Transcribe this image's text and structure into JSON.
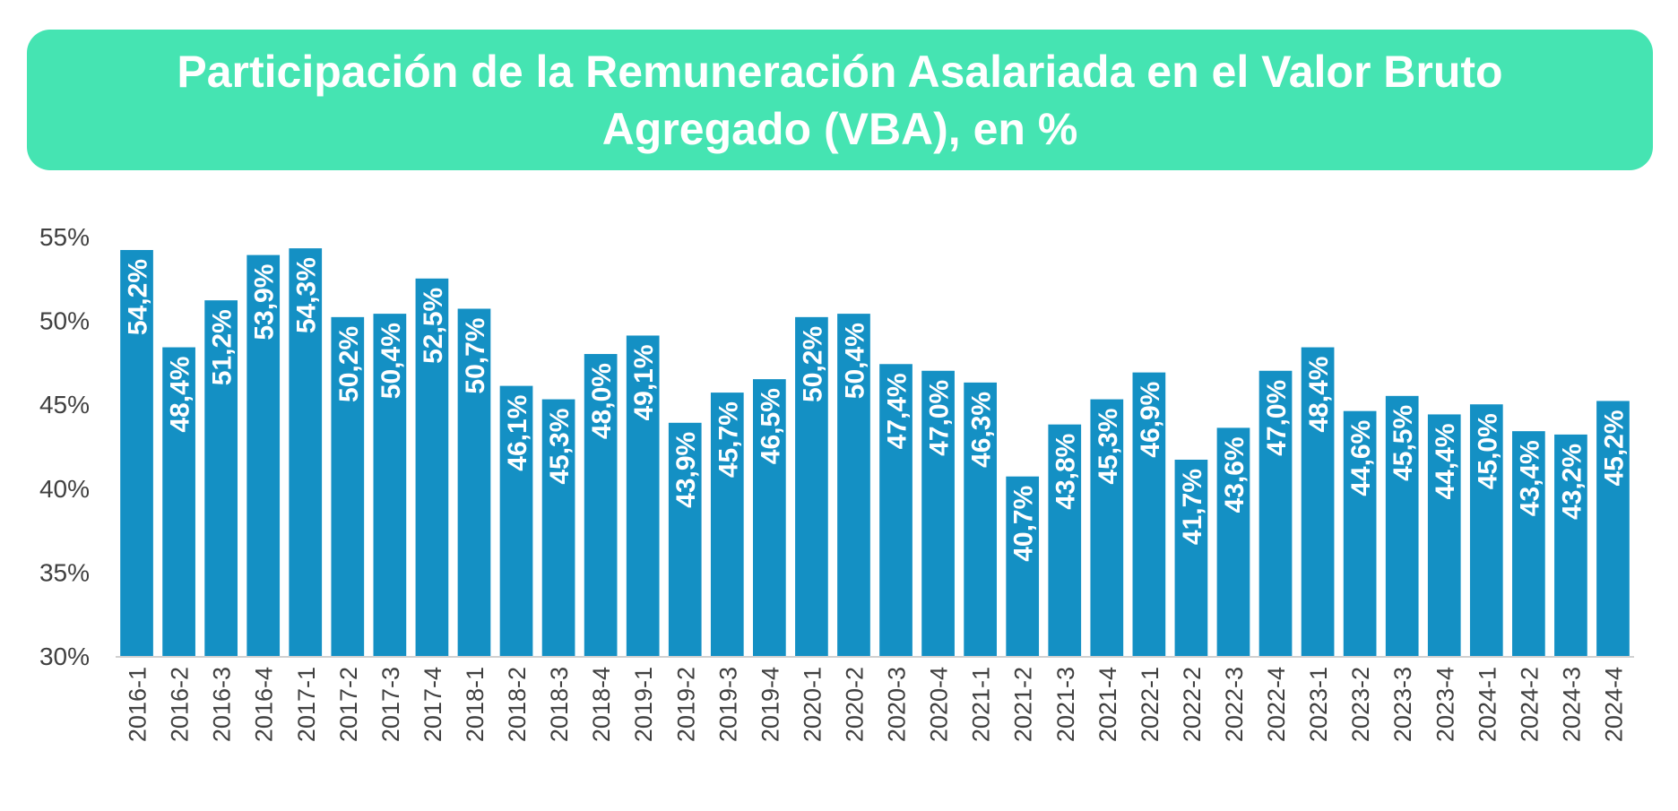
{
  "chart_data": {
    "type": "bar",
    "title_lines": [
      "Participación de la Remuneración Asalariada en el Valor Bruto",
      "Agregado (VBA), en %"
    ],
    "xlabel": "",
    "ylabel": "",
    "ylim": [
      30,
      55
    ],
    "yticks": [
      "30%",
      "35%",
      "40%",
      "45%",
      "50%",
      "55%"
    ],
    "ytick_values": [
      30,
      35,
      40,
      45,
      50,
      55
    ],
    "categories": [
      "2016-1",
      "2016-2",
      "2016-3",
      "2016-4",
      "2017-1",
      "2017-2",
      "2017-3",
      "2017-4",
      "2018-1",
      "2018-2",
      "2018-3",
      "2018-4",
      "2019-1",
      "2019-2",
      "2019-3",
      "2019-4",
      "2020-1",
      "2020-2",
      "2020-3",
      "2020-4",
      "2021-1",
      "2021-2",
      "2021-3",
      "2021-4",
      "2022-1",
      "2022-2",
      "2022-3",
      "2022-4",
      "2023-1",
      "2023-2",
      "2023-3",
      "2023-4",
      "2024-1",
      "2024-2",
      "2024-3",
      "2024-4"
    ],
    "values": [
      54.2,
      48.4,
      51.2,
      53.9,
      54.3,
      50.2,
      50.4,
      52.5,
      50.7,
      46.1,
      45.3,
      48.0,
      49.1,
      43.9,
      45.7,
      46.5,
      50.2,
      50.4,
      47.4,
      47.0,
      46.3,
      40.7,
      43.8,
      45.3,
      46.9,
      41.7,
      43.6,
      47.0,
      48.4,
      44.6,
      45.5,
      44.4,
      45.0,
      43.4,
      43.2,
      45.2
    ],
    "data_labels": [
      "54,2%",
      "48,4%",
      "51,2%",
      "53,9%",
      "54,3%",
      "50,2%",
      "50,4%",
      "52,5%",
      "50,7%",
      "46,1%",
      "45,3%",
      "48,0%",
      "49,1%",
      "43,9%",
      "45,7%",
      "46,5%",
      "50,2%",
      "50,4%",
      "47,4%",
      "47,0%",
      "46,3%",
      "40,7%",
      "43,8%",
      "45,3%",
      "46,9%",
      "41,7%",
      "43,6%",
      "47,0%",
      "48,4%",
      "44,6%",
      "45,5%",
      "44,4%",
      "45,0%",
      "43,4%",
      "43,2%",
      "45,2%"
    ],
    "grid": false,
    "legend": "none",
    "colors": {
      "bar": "#1490c4",
      "banner": "#45e4b2",
      "axis": "#d0d0d0",
      "text": "#404040"
    }
  }
}
